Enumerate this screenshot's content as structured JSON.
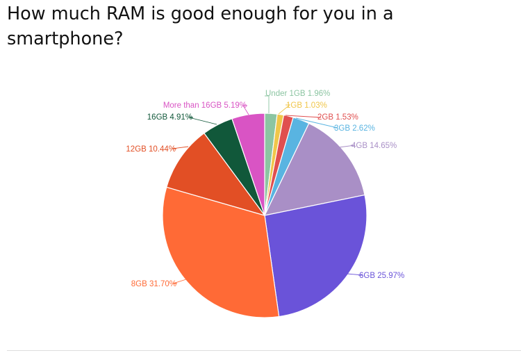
{
  "chart_data": {
    "type": "pie",
    "title": "How much RAM is good enough for you in a smartphone?",
    "slices": [
      {
        "label": "Under 1GB",
        "value": 1.96,
        "display": "Under 1GB 1.96%",
        "color": "#8cc5a2"
      },
      {
        "label": "1GB",
        "value": 1.03,
        "display": "1GB 1.03%",
        "color": "#f0c64a"
      },
      {
        "label": "2GB",
        "value": 1.53,
        "display": "2GB 1.53%",
        "color": "#e04f4f"
      },
      {
        "label": "3GB",
        "value": 2.62,
        "display": "3GB 2.62%",
        "color": "#59b4e1"
      },
      {
        "label": "4GB",
        "value": 14.65,
        "display": "4GB 14.65%",
        "color": "#a98fc6"
      },
      {
        "label": "6GB",
        "value": 25.97,
        "display": "6GB 25.97%",
        "color": "#6a53d9"
      },
      {
        "label": "8GB",
        "value": 31.7,
        "display": "8GB 31.70%",
        "color": "#ff6a36"
      },
      {
        "label": "12GB",
        "value": 10.44,
        "display": "12GB 10.44%",
        "color": "#e24f25"
      },
      {
        "label": "16GB",
        "value": 4.91,
        "display": "16GB 4.91%",
        "color": "#11583a"
      },
      {
        "label": "More than 16GB",
        "value": 5.19,
        "display": "More than 16GB 5.19%",
        "color": "#d954c4"
      }
    ]
  }
}
